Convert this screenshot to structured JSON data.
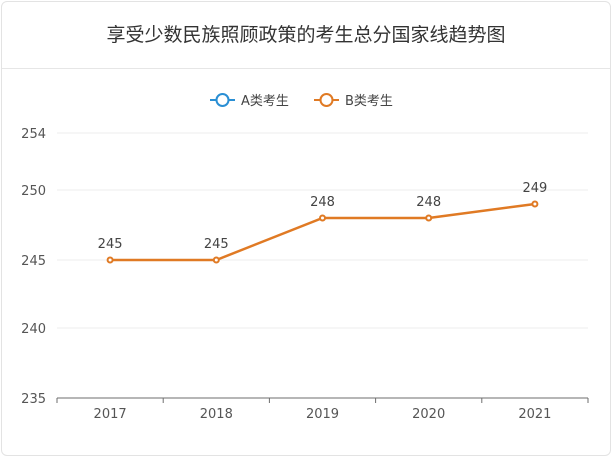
{
  "chart_data": {
    "type": "line",
    "title": "享受少数民族照顾政策的考生总分国家线趋势图",
    "categories": [
      "2017",
      "2018",
      "2019",
      "2020",
      "2021"
    ],
    "series": [
      {
        "name": "A类考生",
        "values": [
          null,
          null,
          null,
          null,
          null
        ],
        "color": "#2a8fd4"
      },
      {
        "name": "B类考生",
        "values": [
          245,
          245,
          248,
          248,
          249
        ],
        "color": "#e07a24"
      }
    ],
    "y_ticks": [
      235,
      240,
      245,
      250,
      254
    ],
    "ylim": [
      235,
      254
    ],
    "grid": true,
    "legend_position": "top-center",
    "xlabel": "",
    "ylabel": ""
  }
}
